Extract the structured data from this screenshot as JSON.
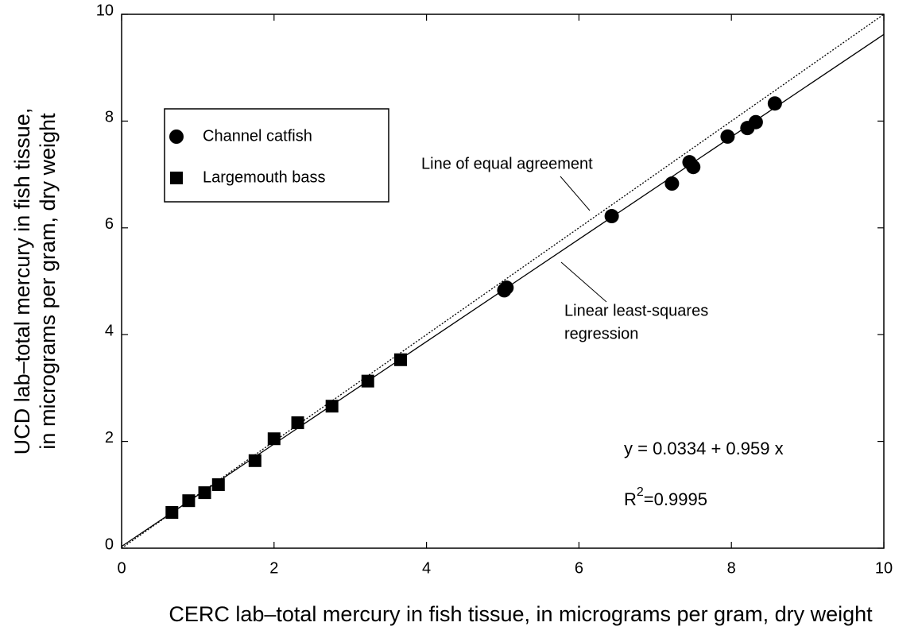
{
  "chart_data": {
    "type": "scatter",
    "xlabel": "CERC lab–total mercury in fish tissue, in micrograms per gram, dry weight",
    "ylabel": [
      "UCD lab–total mercury in fish tissue,",
      "in micrograms per gram, dry weight"
    ],
    "xlim": [
      0,
      10
    ],
    "ylim": [
      0,
      10
    ],
    "xticks": [
      0,
      2,
      4,
      6,
      8,
      10
    ],
    "yticks": [
      0,
      2,
      4,
      6,
      8,
      10
    ],
    "grid": false,
    "legend": "upper left",
    "series": [
      {
        "name": "Channel catfish",
        "color": "#000000",
        "marker": "circle",
        "x": [
          5.02,
          5.05,
          6.43,
          7.22,
          7.45,
          7.5,
          7.95,
          8.21,
          8.32,
          8.57
        ],
        "values": [
          4.83,
          4.88,
          6.22,
          6.83,
          7.23,
          7.14,
          7.71,
          7.87,
          7.98,
          8.33
        ]
      },
      {
        "name": "Largemouth bass",
        "color": "#000000",
        "marker": "square",
        "x": [
          0.66,
          0.88,
          1.09,
          1.27,
          1.75,
          2.0,
          2.31,
          2.76,
          3.23,
          3.66
        ],
        "values": [
          0.67,
          0.89,
          1.04,
          1.19,
          1.64,
          2.05,
          2.35,
          2.66,
          3.13,
          3.53
        ]
      }
    ],
    "lines": [
      {
        "style": "dotted",
        "x": [
          0,
          10
        ],
        "values": [
          0,
          10
        ]
      },
      {
        "style": "solid",
        "x": [
          0,
          10
        ],
        "values": [
          0.0334,
          9.6234
        ]
      }
    ],
    "annotations": {
      "equal": "Line of equal agreement",
      "regression": [
        "Linear least-squares",
        "regression"
      ],
      "equation": "y = 0.0334 + 0.959 x",
      "r2": {
        "base": "R",
        "sup": "2",
        "rest": "=0.9995"
      }
    }
  }
}
